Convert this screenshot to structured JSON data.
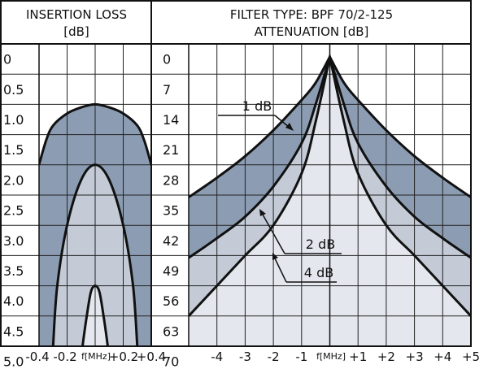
{
  "chart_data": [
    {
      "type": "area",
      "title": "INSERTION LOSS",
      "ylabel": "[dB]",
      "xlabel": "f[MHz]",
      "x_ticks": [
        "-0.4",
        "-0.2",
        "+0.2",
        "+0.4"
      ],
      "y_ticks": [
        "0",
        "0.5",
        "1.0",
        "1.5",
        "2.0",
        "2.5",
        "3.0",
        "3.5",
        "4.0",
        "4.5",
        "5.0"
      ],
      "xlim": [
        -0.4,
        0.4
      ],
      "ylim": [
        0,
        5.0
      ],
      "y_inverted": true,
      "grid": true,
      "series": [
        {
          "x": [
            -0.4,
            -0.35,
            -0.3,
            -0.2,
            -0.1,
            0,
            0.1,
            0.2,
            0.3,
            0.35,
            0.4
          ],
          "y": [
            2.0,
            1.6,
            1.35,
            1.15,
            1.05,
            1.0,
            1.05,
            1.15,
            1.35,
            1.6,
            2.0
          ]
        },
        {
          "x": [
            -0.3,
            -0.27,
            -0.2,
            -0.1,
            0,
            0.1,
            0.2,
            0.27,
            0.3
          ],
          "y": [
            5.0,
            4.0,
            3.0,
            2.25,
            2.0,
            2.25,
            3.0,
            4.0,
            5.0
          ]
        },
        {
          "x": [
            -0.09,
            -0.06,
            -0.03,
            0,
            0.03,
            0.06,
            0.09
          ],
          "y": [
            5.0,
            4.5,
            4.1,
            4.0,
            4.1,
            4.5,
            5.0
          ]
        }
      ],
      "colors": {
        "band_dark": "#8c9db3",
        "band_mid": "#c4cbd7",
        "band_light": "#e4e8ee",
        "line": "#111111"
      }
    },
    {
      "type": "line",
      "title": "FILTER TYPE: BPF 70/2-125",
      "ylabel": "ATTENUATION [dB]",
      "xlabel": "f[MHz]",
      "x_ticks": [
        "-4",
        "-3",
        "-2",
        "-1",
        "+1",
        "+2",
        "+3",
        "+4",
        "+5"
      ],
      "y_ticks": [
        "0",
        "7",
        "14",
        "21",
        "28",
        "35",
        "42",
        "49",
        "56",
        "63",
        "70"
      ],
      "xlim": [
        -5,
        5
      ],
      "ylim": [
        0,
        70
      ],
      "y_inverted": true,
      "grid": true,
      "series": [
        {
          "name": "1 dB",
          "x": [
            -5,
            -4,
            -3,
            -2,
            -1,
            -0.5,
            0,
            0.5,
            1,
            2,
            3,
            4,
            5
          ],
          "y": [
            35.5,
            31,
            26,
            20,
            13,
            9,
            3,
            9,
            13,
            20,
            26,
            31,
            35.5
          ]
        },
        {
          "name": "2 dB",
          "x": [
            -5,
            -4,
            -3,
            -2,
            -1,
            -0.5,
            0,
            0.5,
            1,
            2,
            3,
            4,
            5
          ],
          "y": [
            49.5,
            45,
            40,
            33,
            23,
            14,
            3,
            14,
            23,
            33,
            40,
            45,
            49.5
          ]
        },
        {
          "name": "4 dB",
          "x": [
            -5,
            -4,
            -3,
            -2,
            -1,
            -0.5,
            0,
            0.5,
            1,
            2,
            3,
            4,
            5
          ],
          "y": [
            63,
            56,
            49,
            42,
            30,
            18,
            3,
            18,
            30,
            42,
            49,
            56,
            63
          ]
        }
      ],
      "colors": {
        "band_dark": "#8c9db3",
        "band_mid": "#c4cbd7",
        "band_light": "#e4e8ee",
        "line": "#111111"
      }
    }
  ]
}
